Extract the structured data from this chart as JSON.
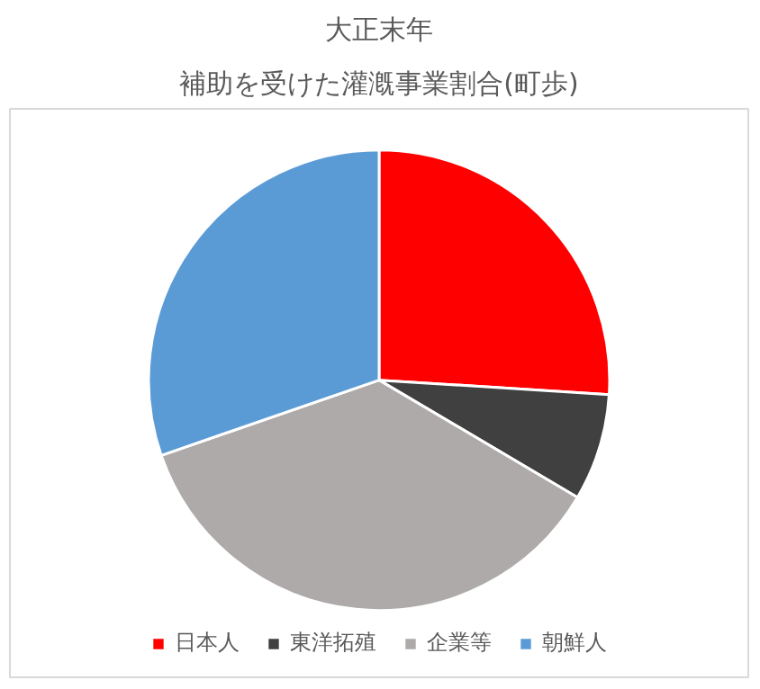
{
  "chart_data": {
    "type": "pie",
    "title": "大正末年",
    "subtitle": "補助を受けた灌漑事業割合(町歩)",
    "categories": [
      "日本人",
      "東洋拓殖",
      "企業等",
      "朝鮮人"
    ],
    "values": [
      26,
      7.5,
      36.2,
      30.3
    ],
    "colors": [
      "#ff0000",
      "#404040",
      "#aeaaaa",
      "#5b9bd5"
    ],
    "legend": "bottom"
  }
}
